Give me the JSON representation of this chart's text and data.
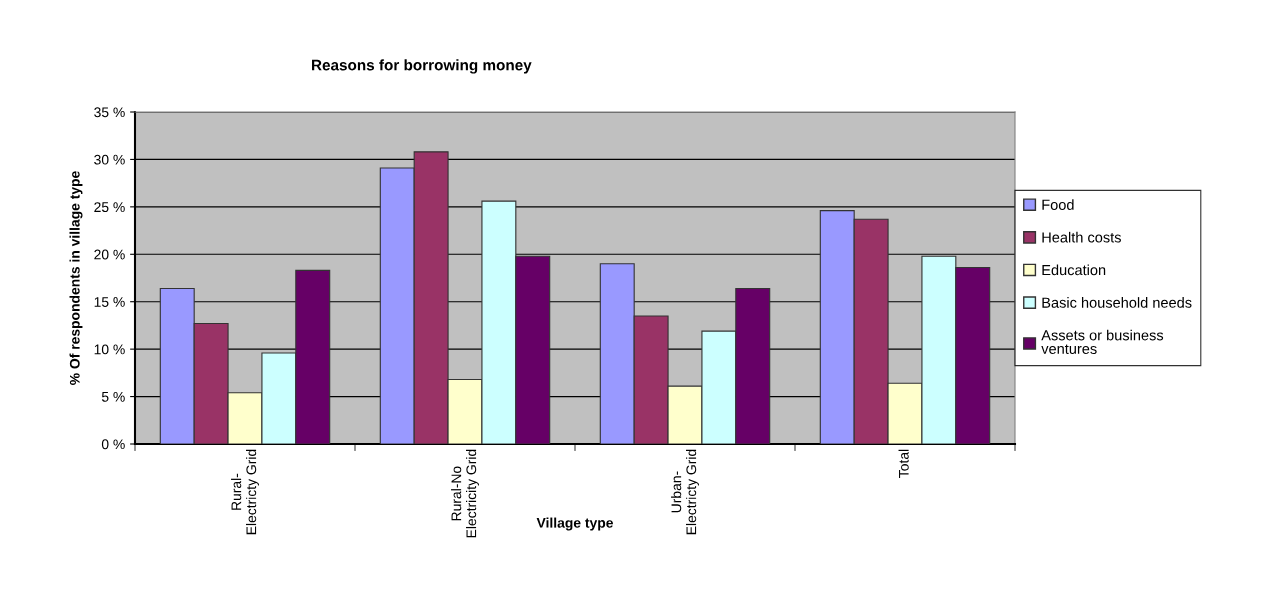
{
  "chart_data": {
    "type": "bar",
    "title": "Reasons for borrowing money",
    "xlabel": "Village type",
    "ylabel": "% Of respondents in village type",
    "categories": [
      "Rural-\nElectricty Grid",
      "Rural-No\nElectricity Grid",
      "Urban-\nElectricty Grid",
      "Total"
    ],
    "series": [
      {
        "name": "Food",
        "color": "#9999ff",
        "values": [
          16.4,
          29.1,
          19.0,
          24.6
        ]
      },
      {
        "name": "Health costs",
        "color": "#993366",
        "values": [
          12.7,
          30.8,
          13.5,
          23.7
        ]
      },
      {
        "name": "Education",
        "color": "#ffffcc",
        "values": [
          5.4,
          6.8,
          6.1,
          6.4
        ]
      },
      {
        "name": "Basic household needs",
        "color": "#ccffff",
        "values": [
          9.6,
          25.6,
          11.9,
          19.8
        ]
      },
      {
        "name": "Assets or business\nventures",
        "color": "#660066",
        "values": [
          18.3,
          19.8,
          16.4,
          18.6
        ]
      }
    ],
    "ylim": [
      0,
      35
    ],
    "yticks": [
      {
        "value": 0,
        "label": "0 %"
      },
      {
        "value": 5,
        "label": "5 %"
      },
      {
        "value": 10,
        "label": "10 %"
      },
      {
        "value": 15,
        "label": "15 %"
      },
      {
        "value": 20,
        "label": "20 %"
      },
      {
        "value": 25,
        "label": "25 %"
      },
      {
        "value": 30,
        "label": "30 %"
      },
      {
        "value": 35,
        "label": "35 %"
      }
    ],
    "grid": "y",
    "legend": "right"
  }
}
